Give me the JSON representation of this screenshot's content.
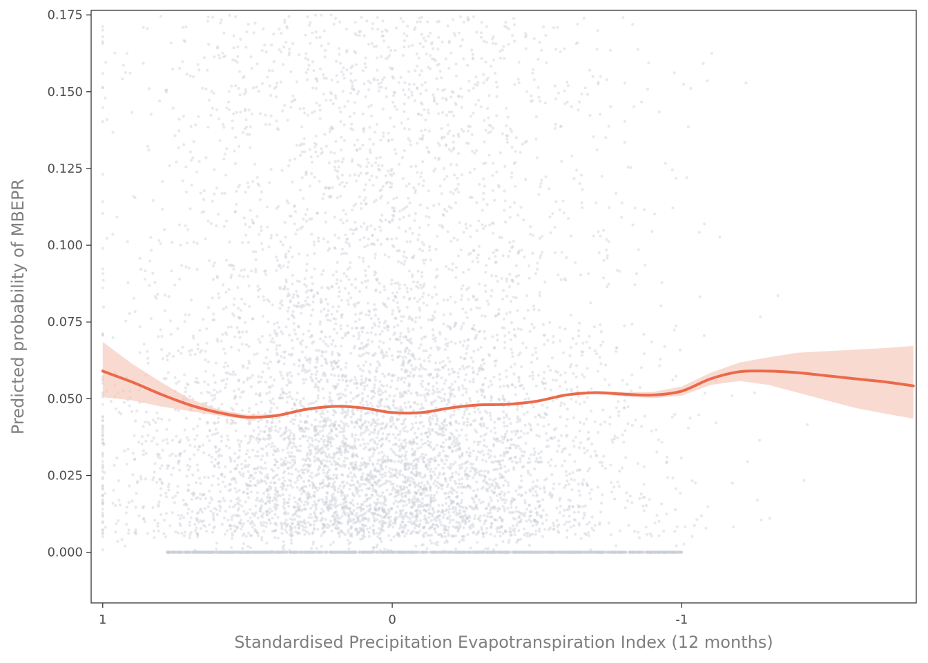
{
  "chart_data": {
    "type": "scatter",
    "title": "",
    "xlabel": "Standardised Precipitation Evapotranspiration Index (12 months)",
    "ylabel": "Predicted probability of MBEPR",
    "x_reversed": true,
    "xlim": [
      1.04,
      -1.81
    ],
    "ylim": [
      -0.0165,
      0.1765
    ],
    "x_ticks": [
      {
        "value": 1,
        "label": "1"
      },
      {
        "value": 0,
        "label": "0"
      },
      {
        "value": -1,
        "label": "-1"
      }
    ],
    "y_ticks": [
      {
        "value": 0.0,
        "label": "0.000"
      },
      {
        "value": 0.025,
        "label": "0.025"
      },
      {
        "value": 0.05,
        "label": "0.050"
      },
      {
        "value": 0.075,
        "label": "0.075"
      },
      {
        "value": 0.1,
        "label": "0.100"
      },
      {
        "value": 0.125,
        "label": "0.125"
      },
      {
        "value": 0.15,
        "label": "0.150"
      },
      {
        "value": 0.175,
        "label": "0.175"
      }
    ],
    "grid": false,
    "colors": {
      "points": "#cbced6",
      "smooth_line": "#ea6a4b",
      "confidence_band": "#f6c6b9",
      "axis": "#333333"
    },
    "scatter": {
      "x_range": [
        0.78,
        -0.95
      ],
      "y_range": [
        0.0,
        0.175
      ],
      "zero_row_x_range": [
        0.78,
        -1.0
      ]
    },
    "smooth": {
      "x": [
        1.0,
        0.9,
        0.8,
        0.7,
        0.6,
        0.5,
        0.4,
        0.3,
        0.2,
        0.1,
        0.0,
        -0.1,
        -0.2,
        -0.3,
        -0.4,
        -0.5,
        -0.6,
        -0.7,
        -0.8,
        -0.9,
        -1.0,
        -1.1,
        -1.2,
        -1.3,
        -1.4,
        -1.5,
        -1.6,
        -1.7,
        -1.8
      ],
      "y": [
        0.059,
        0.0555,
        0.0515,
        0.048,
        0.0455,
        0.044,
        0.0445,
        0.0465,
        0.0475,
        0.047,
        0.0455,
        0.0455,
        0.047,
        0.048,
        0.0482,
        0.0492,
        0.0512,
        0.052,
        0.0515,
        0.0512,
        0.0525,
        0.0565,
        0.0588,
        0.059,
        0.0585,
        0.0575,
        0.0565,
        0.0555,
        0.0542
      ],
      "lower": [
        0.0505,
        0.0495,
        0.0475,
        0.046,
        0.0445,
        0.0432,
        0.044,
        0.0462,
        0.0472,
        0.0468,
        0.0452,
        0.0452,
        0.0467,
        0.0477,
        0.0479,
        0.0489,
        0.0509,
        0.0515,
        0.0508,
        0.0502,
        0.051,
        0.0545,
        0.0558,
        0.0545,
        0.052,
        0.0495,
        0.047,
        0.0452,
        0.0435
      ],
      "upper": [
        0.0685,
        0.0615,
        0.0555,
        0.05,
        0.0465,
        0.0448,
        0.045,
        0.0468,
        0.0478,
        0.0472,
        0.0458,
        0.0458,
        0.0473,
        0.0483,
        0.0485,
        0.0495,
        0.0515,
        0.0525,
        0.0522,
        0.0522,
        0.054,
        0.0585,
        0.0618,
        0.0635,
        0.065,
        0.0655,
        0.066,
        0.0665,
        0.0672
      ]
    }
  }
}
